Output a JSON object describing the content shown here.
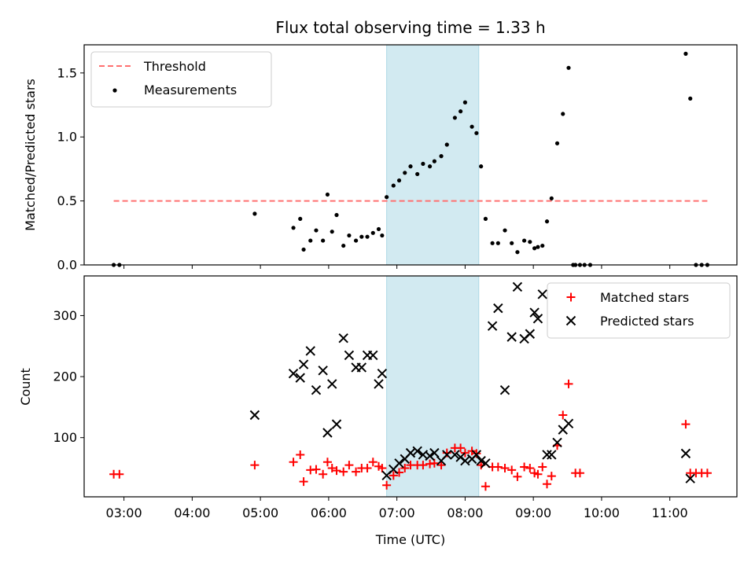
{
  "chart_data": [
    {
      "type": "scatter",
      "title": "Flux total observing time = 1.33 h",
      "xlabel": "",
      "ylabel": "Matched/Predicted stars",
      "ylim": [
        0,
        1.72
      ],
      "yticks": [
        "0.0",
        "0.5",
        "1.0",
        "1.5"
      ],
      "shaded_range": [
        "06:51",
        "08:12"
      ],
      "legend": {
        "position": "top-left",
        "entries": [
          "Threshold",
          "Measurements"
        ]
      },
      "series": [
        {
          "name": "Threshold",
          "style": "dashed-line",
          "color": "#ff7070",
          "x": [
            "02:51",
            "11:33"
          ],
          "y": [
            0.5,
            0.5
          ]
        },
        {
          "name": "Measurements",
          "style": "dot",
          "color": "#000000",
          "x": [
            "02:51",
            "02:56",
            "04:55",
            "05:29",
            "05:35",
            "05:38",
            "05:44",
            "05:49",
            "05:55",
            "05:59",
            "06:03",
            "06:07",
            "06:13",
            "06:18",
            "06:24",
            "06:29",
            "06:34",
            "06:39",
            "06:44",
            "06:47",
            "06:51",
            "06:57",
            "07:02",
            "07:07",
            "07:12",
            "07:18",
            "07:23",
            "07:29",
            "07:33",
            "07:39",
            "07:44",
            "07:51",
            "07:56",
            "08:00",
            "08:06",
            "08:10",
            "08:14",
            "08:18",
            "08:24",
            "08:29",
            "08:35",
            "08:41",
            "08:46",
            "08:52",
            "08:57",
            "09:01",
            "09:04",
            "09:08",
            "09:12",
            "09:16",
            "09:21",
            "09:26",
            "09:31",
            "09:35",
            "09:37",
            "09:41",
            "09:45",
            "09:50",
            "11:14",
            "11:18",
            "11:23",
            "11:28",
            "11:33"
          ],
          "y": [
            0,
            0,
            0.4,
            0.29,
            0.36,
            0.12,
            0.19,
            0.27,
            0.19,
            0.55,
            0.26,
            0.39,
            0.15,
            0.23,
            0.19,
            0.22,
            0.22,
            0.25,
            0.28,
            0.23,
            0.53,
            0.62,
            0.66,
            0.72,
            0.77,
            0.71,
            0.79,
            0.77,
            0.81,
            0.85,
            0.94,
            1.15,
            1.2,
            1.27,
            1.08,
            1.03,
            0.77,
            0.36,
            0.17,
            0.17,
            0.27,
            0.17,
            0.1,
            0.19,
            0.18,
            0.13,
            0.14,
            0.15,
            0.34,
            0.52,
            0.95,
            1.18,
            1.54,
            0,
            0,
            0,
            0,
            0,
            1.65,
            1.3,
            0,
            0,
            0
          ]
        }
      ]
    },
    {
      "type": "scatter",
      "title": "",
      "xlabel": "Time (UTC)",
      "ylabel": "Count",
      "ylim": [
        3,
        365
      ],
      "yticks": [
        "100",
        "200",
        "300"
      ],
      "xticks": [
        "03:00",
        "04:00",
        "05:00",
        "06:00",
        "07:00",
        "08:00",
        "09:00",
        "10:00",
        "11:00"
      ],
      "shaded_range": [
        "06:51",
        "08:12"
      ],
      "legend": {
        "position": "top-right",
        "entries": [
          "Matched stars",
          "Predicted stars"
        ]
      },
      "series": [
        {
          "name": "Matched stars",
          "style": "plus",
          "color": "#ff0000",
          "x": [
            "02:51",
            "02:56",
            "04:55",
            "05:29",
            "05:35",
            "05:38",
            "05:44",
            "05:49",
            "05:55",
            "05:59",
            "06:03",
            "06:07",
            "06:13",
            "06:18",
            "06:24",
            "06:29",
            "06:34",
            "06:39",
            "06:44",
            "06:47",
            "06:51",
            "06:57",
            "07:02",
            "07:07",
            "07:12",
            "07:18",
            "07:23",
            "07:29",
            "07:33",
            "07:39",
            "07:44",
            "07:51",
            "07:56",
            "08:00",
            "08:06",
            "08:10",
            "08:14",
            "08:18",
            "08:24",
            "08:29",
            "08:35",
            "08:41",
            "08:46",
            "08:52",
            "08:57",
            "09:01",
            "09:04",
            "09:08",
            "09:12",
            "09:16",
            "09:21",
            "09:26",
            "09:31",
            "09:37",
            "09:41",
            "11:14",
            "11:18",
            "11:23",
            "11:28",
            "11:33"
          ],
          "y": [
            40,
            40,
            55,
            60,
            72,
            28,
            47,
            48,
            40,
            60,
            50,
            46,
            44,
            55,
            44,
            50,
            50,
            60,
            53,
            50,
            22,
            38,
            43,
            50,
            55,
            55,
            55,
            57,
            58,
            55,
            75,
            83,
            83,
            75,
            78,
            74,
            55,
            20,
            52,
            52,
            50,
            47,
            36,
            52,
            50,
            42,
            40,
            52,
            24,
            37,
            87,
            137,
            188,
            42,
            42,
            122,
            42,
            42,
            42,
            42
          ]
        },
        {
          "name": "Predicted stars",
          "style": "x",
          "color": "#000000",
          "x": [
            "04:55",
            "05:29",
            "05:35",
            "05:38",
            "05:44",
            "05:49",
            "05:55",
            "05:59",
            "06:03",
            "06:07",
            "06:13",
            "06:18",
            "06:24",
            "06:29",
            "06:34",
            "06:39",
            "06:44",
            "06:47",
            "06:51",
            "06:57",
            "07:02",
            "07:07",
            "07:12",
            "07:18",
            "07:23",
            "07:29",
            "07:33",
            "07:39",
            "07:44",
            "07:51",
            "07:56",
            "08:00",
            "08:06",
            "08:10",
            "08:14",
            "08:18",
            "08:24",
            "08:29",
            "08:35",
            "08:41",
            "08:46",
            "08:52",
            "08:57",
            "09:01",
            "09:04",
            "09:08",
            "09:12",
            "09:16",
            "09:21",
            "09:26",
            "09:31",
            "11:14",
            "11:18"
          ],
          "y": [
            137,
            205,
            198,
            220,
            242,
            178,
            210,
            108,
            188,
            122,
            263,
            235,
            215,
            215,
            235,
            235,
            188,
            205,
            38,
            48,
            58,
            65,
            75,
            78,
            72,
            70,
            75,
            62,
            72,
            72,
            68,
            62,
            65,
            72,
            62,
            58,
            283,
            312,
            178,
            265,
            347,
            262,
            270,
            305,
            295,
            335,
            72,
            72,
            92,
            113,
            123,
            74,
            33
          ]
        }
      ]
    }
  ]
}
